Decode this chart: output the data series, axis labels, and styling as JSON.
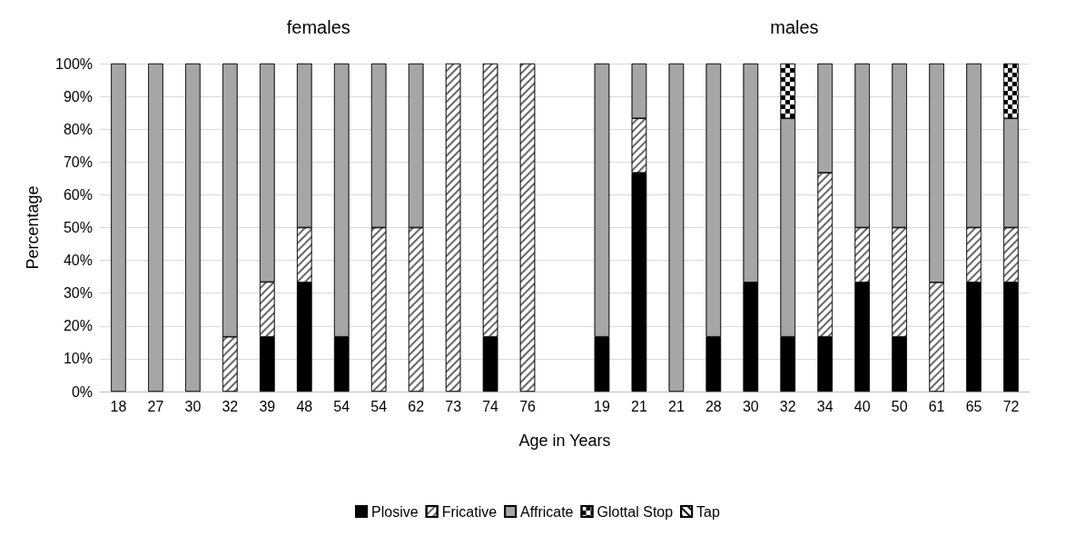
{
  "chart_data": {
    "type": "bar",
    "stacked": true,
    "xlabel": "Age in Years",
    "ylabel": "Percentage",
    "annotations": [
      "females",
      "males"
    ],
    "categories": [
      "18",
      "27",
      "30",
      "32",
      "39",
      "48",
      "54",
      "54",
      "62",
      "73",
      "74",
      "76",
      null,
      "19",
      "21",
      "21",
      "28",
      "30",
      "32",
      "34",
      "40",
      "50",
      "61",
      "65",
      "72"
    ],
    "series": [
      {
        "name": "Plosive",
        "color": "#000000",
        "values": [
          null,
          null,
          null,
          null,
          16.7,
          33.3,
          16.7,
          null,
          null,
          null,
          16.7,
          null,
          null,
          16.7,
          66.7,
          null,
          16.7,
          33.3,
          16.7,
          16.7,
          33.3,
          16.7,
          null,
          33.3,
          33.3
        ]
      },
      {
        "name": "Fricative",
        "color": "#ffffff",
        "values": [
          null,
          null,
          null,
          16.7,
          16.7,
          16.7,
          null,
          50,
          50,
          100,
          83.3,
          100,
          null,
          null,
          16.6,
          null,
          null,
          null,
          null,
          50,
          16.7,
          33.3,
          33.3,
          16.7,
          16.7
        ]
      },
      {
        "name": "Affricate",
        "color": "#a6a6a6",
        "values": [
          100,
          100,
          100,
          83.3,
          66.6,
          50,
          83.3,
          50,
          50,
          null,
          null,
          null,
          null,
          83.3,
          16.7,
          100,
          83.3,
          66.7,
          66.6,
          33.3,
          50,
          50,
          66.7,
          50,
          33.3
        ]
      },
      {
        "name": "Glottal Stop",
        "color": "#ffffff",
        "values": [
          null,
          null,
          null,
          null,
          null,
          null,
          null,
          null,
          null,
          null,
          null,
          null,
          null,
          null,
          null,
          null,
          null,
          null,
          16.7,
          null,
          null,
          null,
          null,
          null,
          16.7
        ]
      },
      {
        "name": "Tap",
        "color": "#ffffff",
        "values": [
          null,
          null,
          null,
          null,
          null,
          null,
          null,
          null,
          null,
          null,
          null,
          null,
          null,
          null,
          null,
          null,
          null,
          null,
          null,
          null,
          null,
          null,
          null,
          null,
          null
        ]
      }
    ],
    "ylim": [
      0,
      100
    ],
    "yticks": [
      {
        "value": 0,
        "label": "0%"
      },
      {
        "value": 10,
        "label": "10%"
      },
      {
        "value": 20,
        "label": "20%"
      },
      {
        "value": 30,
        "label": "30%"
      },
      {
        "value": 40,
        "label": "40%"
      },
      {
        "value": 50,
        "label": "50%"
      },
      {
        "value": 60,
        "label": "60%"
      },
      {
        "value": 70,
        "label": "70%"
      },
      {
        "value": 80,
        "label": "80%"
      },
      {
        "value": 90,
        "label": "90%"
      },
      {
        "value": 100,
        "label": "100%"
      }
    ],
    "grid": "y",
    "legend": "bottom"
  }
}
